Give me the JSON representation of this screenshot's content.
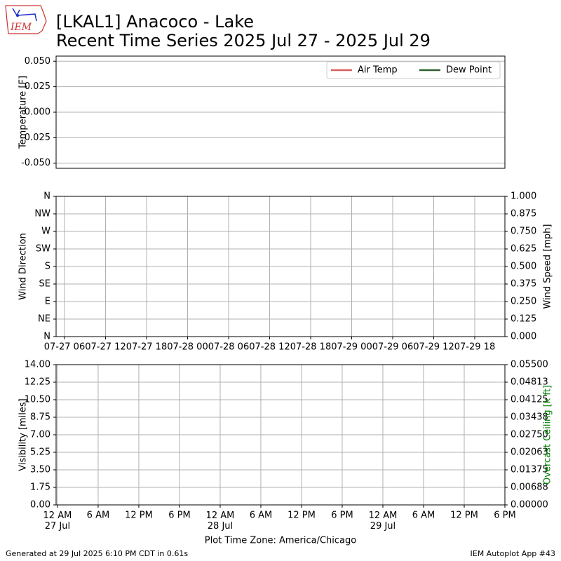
{
  "header": {
    "title": "[LKAL1] Anacoco - Lake",
    "subtitle": "Recent Time Series 2025 Jul 27 - 2025 Jul 29",
    "logo_text": "IEM"
  },
  "chart_data": [
    {
      "type": "line",
      "ylabel": "Temperature [F]",
      "ylim": [
        -0.055,
        0.055
      ],
      "yticks": [
        {
          "value": 0.05,
          "label": "0.050"
        },
        {
          "value": 0.025,
          "label": "0.025"
        },
        {
          "value": 0,
          "label": "0.000"
        },
        {
          "value": -0.025,
          "label": "-0.025"
        },
        {
          "value": -0.05,
          "label": "-0.050"
        }
      ],
      "grid": true,
      "legend": "upper right",
      "series": [
        {
          "name": "Air Temp",
          "color": "#d95f5f",
          "values": []
        },
        {
          "name": "Dew Point",
          "color": "#2e5e2e",
          "values": []
        }
      ]
    },
    {
      "type": "line",
      "ylabel": "Wind Direction",
      "y2label": "Wind Speed [mph]",
      "ylim": [
        0,
        360
      ],
      "yticks": [
        {
          "value": 0,
          "label": "N"
        },
        {
          "value": 45,
          "label": "NE"
        },
        {
          "value": 90,
          "label": "E"
        },
        {
          "value": 135,
          "label": "SE"
        },
        {
          "value": 180,
          "label": "S"
        },
        {
          "value": 225,
          "label": "SW"
        },
        {
          "value": 270,
          "label": "W"
        },
        {
          "value": 315,
          "label": "NW"
        },
        {
          "value": 360,
          "label": "N"
        }
      ],
      "y2lim": [
        0,
        1
      ],
      "y2ticks": [
        {
          "value": 0,
          "label": "0.000"
        },
        {
          "value": 0.125,
          "label": "0.125"
        },
        {
          "value": 0.25,
          "label": "0.250"
        },
        {
          "value": 0.375,
          "label": "0.375"
        },
        {
          "value": 0.5,
          "label": "0.500"
        },
        {
          "value": 0.625,
          "label": "0.625"
        },
        {
          "value": 0.75,
          "label": "0.750"
        },
        {
          "value": 0.875,
          "label": "0.875"
        },
        {
          "value": 1,
          "label": "1.000"
        }
      ],
      "xlim": [
        4.77,
        70.41
      ],
      "xticks": [
        {
          "value": 6,
          "label": "07-27 06"
        },
        {
          "value": 12,
          "label": "07-27 12"
        },
        {
          "value": 18,
          "label": "07-27 18"
        },
        {
          "value": 24,
          "label": "07-28 00"
        },
        {
          "value": 30,
          "label": "07-28 06"
        },
        {
          "value": 36,
          "label": "07-28 12"
        },
        {
          "value": 42,
          "label": "07-28 18"
        },
        {
          "value": 48,
          "label": "07-29 00"
        },
        {
          "value": 54,
          "label": "07-29 06"
        },
        {
          "value": 60,
          "label": "07-29 12"
        },
        {
          "value": 66,
          "label": "07-29 18"
        }
      ],
      "grid": true
    },
    {
      "type": "line",
      "ylabel": "Visibility [miles]",
      "y2label": "Overcast Ceiling [k ft]",
      "y2label_color": "#008000",
      "xlabel": "Plot Time Zone: America/Chicago",
      "ylim": [
        0,
        14
      ],
      "yticks": [
        {
          "value": 0,
          "label": "0.00"
        },
        {
          "value": 1.75,
          "label": "1.75"
        },
        {
          "value": 3.5,
          "label": "3.50"
        },
        {
          "value": 5.25,
          "label": "5.25"
        },
        {
          "value": 7,
          "label": "7.00"
        },
        {
          "value": 8.75,
          "label": "8.75"
        },
        {
          "value": 10.5,
          "label": "10.50"
        },
        {
          "value": 12.25,
          "label": "12.25"
        },
        {
          "value": 14,
          "label": "14.00"
        }
      ],
      "y2lim": [
        0,
        0.055
      ],
      "y2ticks": [
        {
          "value": 0,
          "label": "0.00000"
        },
        {
          "value": 0.006875,
          "label": "0.00688"
        },
        {
          "value": 0.01375,
          "label": "0.01375"
        },
        {
          "value": 0.020625,
          "label": "0.02063"
        },
        {
          "value": 0.0275,
          "label": "0.02750"
        },
        {
          "value": 0.034375,
          "label": "0.03438"
        },
        {
          "value": 0.04125,
          "label": "0.04125"
        },
        {
          "value": 0.048125,
          "label": "0.04813"
        },
        {
          "value": 0.055,
          "label": "0.05500"
        }
      ],
      "xlim": [
        -0.2,
        66
      ],
      "xticks": [
        {
          "value": 0,
          "label": "12 AM\n27 Jul"
        },
        {
          "value": 6,
          "label": "6 AM"
        },
        {
          "value": 12,
          "label": "12 PM"
        },
        {
          "value": 18,
          "label": "6 PM"
        },
        {
          "value": 24,
          "label": "12 AM\n28 Jul"
        },
        {
          "value": 30,
          "label": "6 AM"
        },
        {
          "value": 36,
          "label": "12 PM"
        },
        {
          "value": 42,
          "label": "6 PM"
        },
        {
          "value": 48,
          "label": "12 AM\n29 Jul"
        },
        {
          "value": 54,
          "label": "6 AM"
        },
        {
          "value": 60,
          "label": "12 PM"
        },
        {
          "value": 66,
          "label": "6 PM"
        }
      ],
      "grid": true
    }
  ],
  "footer": {
    "left": "Generated at 29 Jul 2025 6:10 PM CDT in 0.61s",
    "right": "IEM Autoplot App #43"
  }
}
